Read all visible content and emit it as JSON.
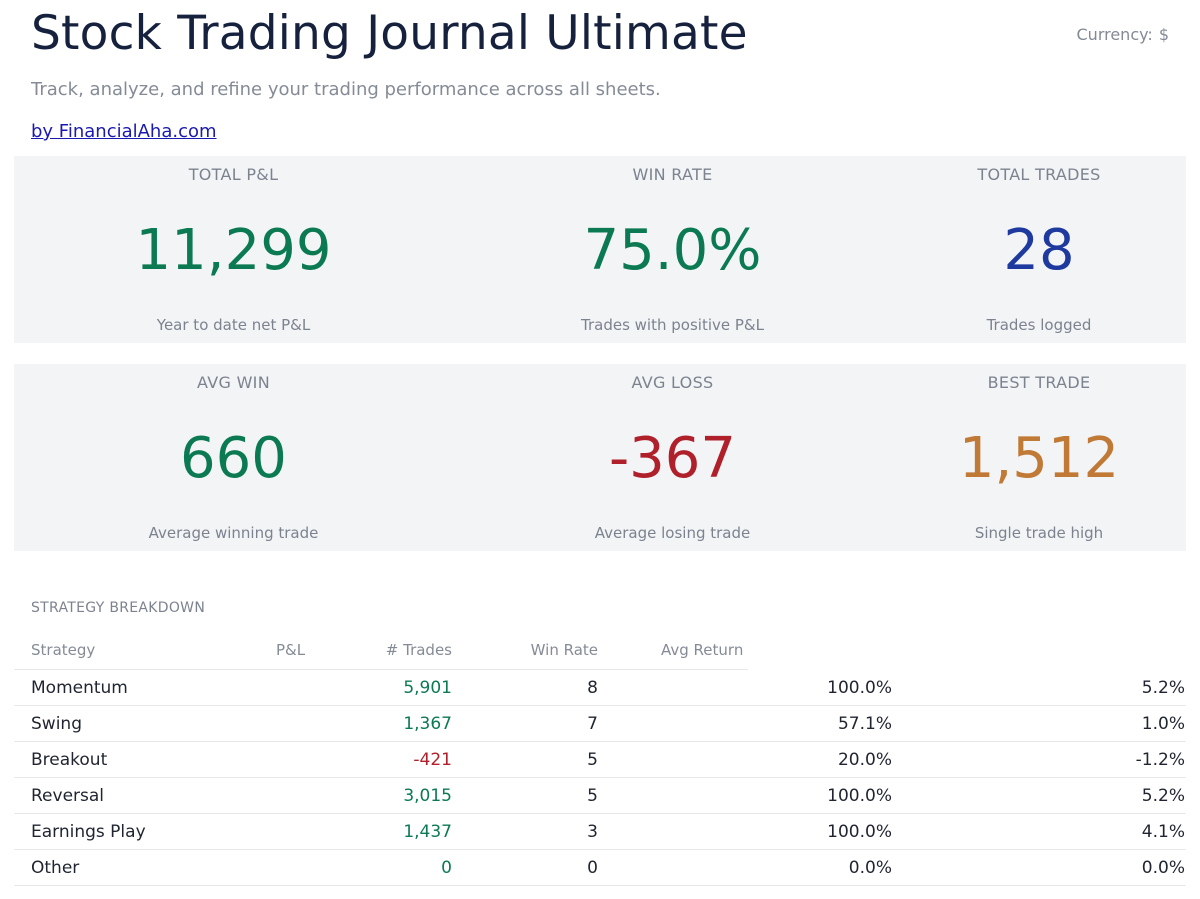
{
  "header": {
    "title": "Stock Trading Journal Ultimate",
    "subtitle": "Track, analyze, and refine your trading performance across all sheets.",
    "credit_link": "by FinancialAha.com",
    "currency_label": "Currency:",
    "currency_symbol": "$"
  },
  "kpis": [
    {
      "label": "TOTAL P&L",
      "value": "11,299",
      "caption": "Year to date net P&L",
      "color": "#0b7a52"
    },
    {
      "label": "WIN RATE",
      "value": "75.0%",
      "caption": "Trades with positive P&L",
      "color": "#0b7a52"
    },
    {
      "label": "TOTAL TRADES",
      "value": "28",
      "caption": "Trades logged",
      "color": "#1e3a9e"
    },
    {
      "label": "AVG WIN",
      "value": "660",
      "caption": "Average winning trade",
      "color": "#0b7a52"
    },
    {
      "label": "AVG LOSS",
      "value": "-367",
      "caption": "Average losing trade",
      "color": "#b0202a"
    },
    {
      "label": "BEST TRADE",
      "value": "1,512",
      "caption": "Single trade high",
      "color": "#c17a36"
    }
  ],
  "strategy": {
    "section_title": "STRATEGY BREAKDOWN",
    "columns": {
      "strategy": "Strategy",
      "pnl": "P&L",
      "trades": "# Trades",
      "win_rate": "Win Rate",
      "avg_return": "Avg Return"
    },
    "rows": [
      {
        "strategy": "Momentum",
        "pnl": "5,901",
        "trades": "8",
        "win_rate": "100.0%",
        "avg_return": "5.2%"
      },
      {
        "strategy": "Swing",
        "pnl": "1,367",
        "trades": "7",
        "win_rate": "57.1%",
        "avg_return": "1.0%"
      },
      {
        "strategy": "Breakout",
        "pnl": "-421",
        "trades": "5",
        "win_rate": "20.0%",
        "avg_return": "-1.2%"
      },
      {
        "strategy": "Reversal",
        "pnl": "3,015",
        "trades": "5",
        "win_rate": "100.0%",
        "avg_return": "5.2%"
      },
      {
        "strategy": "Earnings Play",
        "pnl": "1,437",
        "trades": "3",
        "win_rate": "100.0%",
        "avg_return": "4.1%"
      },
      {
        "strategy": "Other",
        "pnl": "0",
        "trades": "0",
        "win_rate": "0.0%",
        "avg_return": "0.0%"
      }
    ],
    "positive_color": "#0b7a52",
    "negative_color": "#b0202a"
  }
}
